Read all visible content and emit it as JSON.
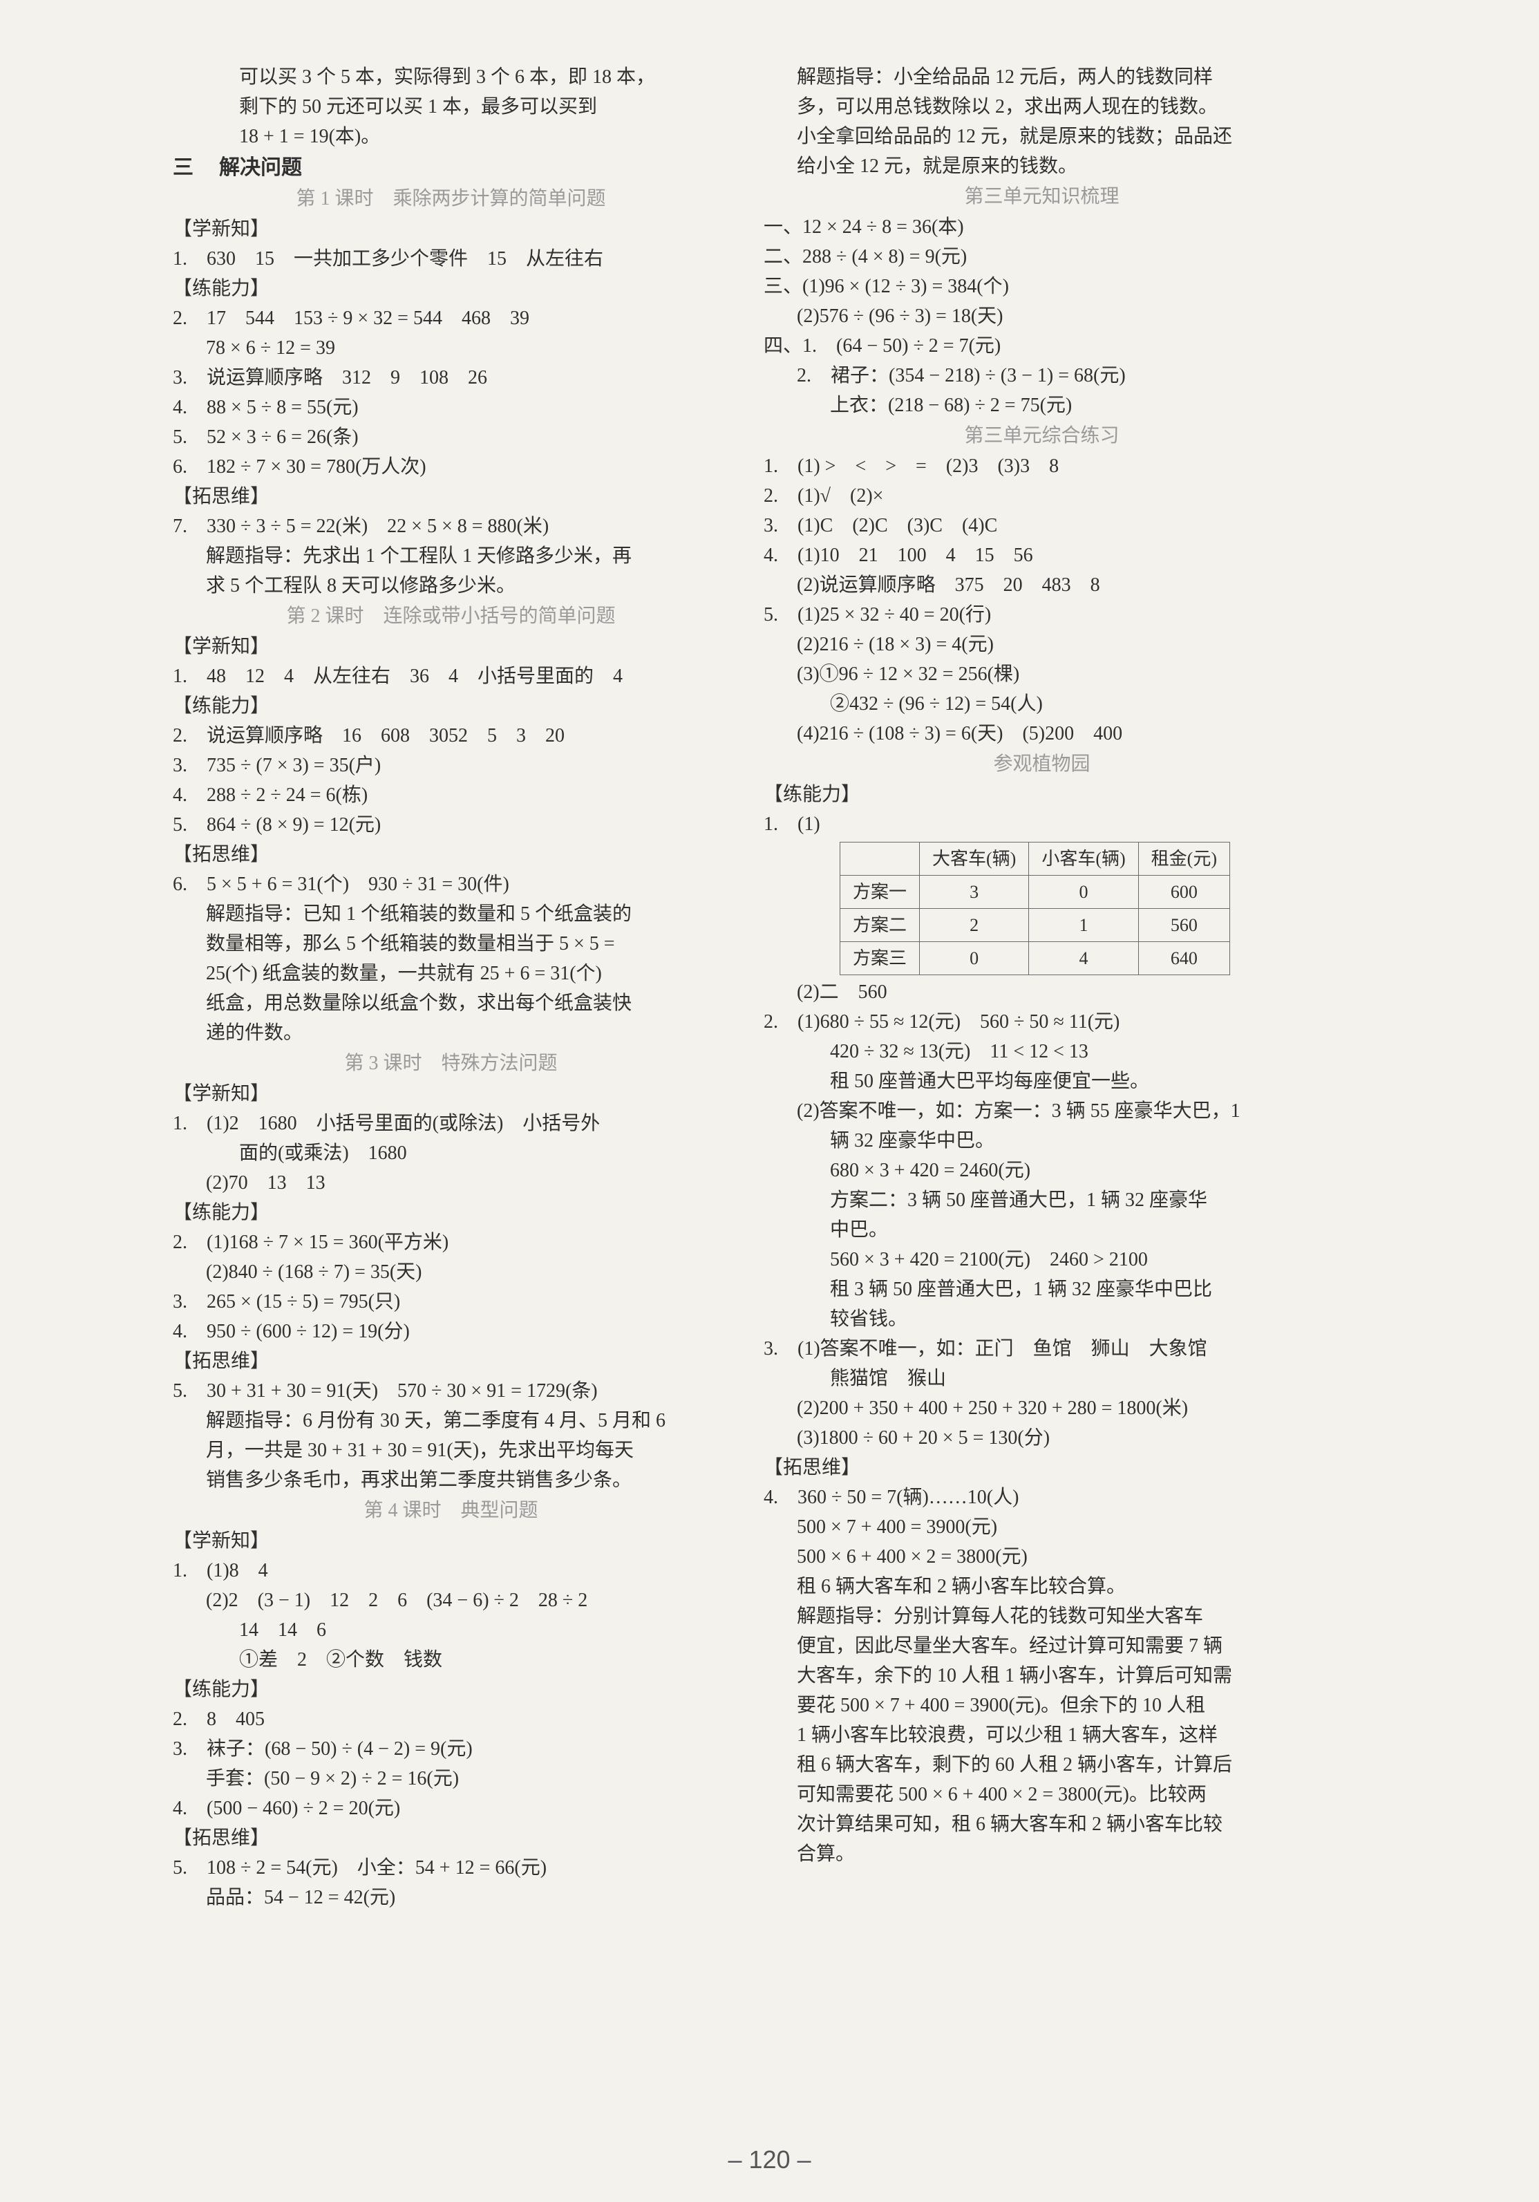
{
  "page_number": "– 120 –",
  "left": {
    "pre": [
      "可以买 3 个 5 本，实际得到 3 个 6 本，即 18 本，",
      "剩下的 50 元还可以买 1 本，最多可以买到",
      "18 + 1 = 19(本)。"
    ],
    "sec3": {
      "num": "三",
      "title": "解决问题"
    },
    "lesson1": "第 1 课时　乘除两步计算的简单问题",
    "h_learn": "【学新知】",
    "l1": "1.　630　15　一共加工多少个零件　15　从左往右",
    "h_practice": "【练能力】",
    "l2": "2.　17　544　153 ÷ 9 × 32 = 544　468　39",
    "l2b": "78 × 6 ÷ 12 = 39",
    "l3": "3.　说运算顺序略　312　9　108　26",
    "l4": "4.　88 × 5 ÷ 8 = 55(元)",
    "l5": "5.　52 × 3 ÷ 6 = 26(条)",
    "l6": "6.　182 ÷ 7 × 30 = 780(万人次)",
    "h_think": "【拓思维】",
    "l7": "7.　330 ÷ 3 ÷ 5 = 22(米)　22 × 5 × 8 = 880(米)",
    "l7a": "解题指导：先求出 1 个工程队 1 天修路多少米，再",
    "l7b": "求 5 个工程队 8 天可以修路多少米。",
    "lesson2": "第 2 课时　连除或带小括号的简单问题",
    "b1": "1.　48　12　4　从左往右　36　4　小括号里面的　4",
    "b2": "2.　说运算顺序略　16　608　3052　5　3　20",
    "b3": "3.　735 ÷ (7 × 3) = 35(户)",
    "b4": "4.　288 ÷ 2 ÷ 24 = 6(栋)",
    "b5": "5.　864 ÷ (8 × 9) = 12(元)",
    "b6": "6.　5 × 5 + 6 = 31(个)　930 ÷ 31 = 30(件)",
    "b6a": "解题指导：已知 1 个纸箱装的数量和 5 个纸盒装的",
    "b6b": "数量相等，那么 5 个纸箱装的数量相当于 5 × 5 =",
    "b6c": "25(个) 纸盒装的数量，一共就有 25 + 6 = 31(个)",
    "b6d": "纸盒，用总数量除以纸盒个数，求出每个纸盒装快",
    "b6e": "递的件数。",
    "lesson3": "第 3 课时　特殊方法问题",
    "c1a": "1.　(1)2　1680　小括号里面的(或除法)　小括号外",
    "c1b": "面的(或乘法)　1680",
    "c1c": "(2)70　13　13",
    "c2": "2.　(1)168 ÷ 7 × 15 = 360(平方米)",
    "c2b": "(2)840 ÷ (168 ÷ 7) = 35(天)",
    "c3": "3.　265 × (15 ÷ 5) = 795(只)",
    "c4": "4.　950 ÷ (600 ÷ 12) = 19(分)",
    "c5": "5.　30 + 31 + 30 = 91(天)　570 ÷ 30 × 91 = 1729(条)",
    "c5a": "解题指导：6 月份有 30 天，第二季度有 4 月、5 月和 6",
    "c5b": "月，一共是 30 + 31 + 30 = 91(天)，先求出平均每天",
    "c5c": "销售多少条毛巾，再求出第二季度共销售多少条。",
    "lesson4": "第 4 课时　典型问题",
    "d1a": "1.　(1)8　4",
    "d1b": "(2)2　(3 − 1)　12　2　6　(34 − 6) ÷ 2　28 ÷ 2",
    "d1c": "14　14　6",
    "d1d": "①差　2　②个数　钱数",
    "d2": "2.　8　405",
    "d3a": "3.　袜子：(68 − 50) ÷ (4 − 2) = 9(元)",
    "d3b": "手套：(50 − 9 × 2) ÷ 2 = 16(元)",
    "d4": "4.　(500 − 460) ÷ 2 = 20(元)",
    "d5a": "5.　108 ÷ 2 = 54(元)　小全：54 + 12 = 66(元)",
    "d5b": "品品：54 − 12 = 42(元)"
  },
  "right": {
    "e1": "解题指导：小全给品品 12 元后，两人的钱数同样",
    "e2": "多，可以用总钱数除以 2，求出两人现在的钱数。",
    "e3": "小全拿回给品品的 12 元，就是原来的钱数；品品还",
    "e4": "给小全 12 元，就是原来的钱数。",
    "lessonA": "第三单元知识梳理",
    "f1": "一、12 × 24 ÷ 8 = 36(本)",
    "f2": "二、288 ÷ (4 × 8) = 9(元)",
    "f3a": "三、(1)96 × (12 ÷ 3) = 384(个)",
    "f3b": "(2)576 ÷ (96 ÷ 3) = 18(天)",
    "f4a": "四、1.　(64 − 50) ÷ 2 = 7(元)",
    "f4b": "2.　裙子：(354 − 218) ÷ (3 − 1) = 68(元)",
    "f4c": "上衣：(218 − 68) ÷ 2 = 75(元)",
    "lessonB": "第三单元综合练习",
    "g1": "1.　(1) >　<　>　=　(2)3　(3)3　8",
    "g2": "2.　(1)√　(2)×",
    "g3": "3.　(1)C　(2)C　(3)C　(4)C",
    "g4a": "4.　(1)10　21　100　4　15　56",
    "g4b": "(2)说运算顺序略　375　20　483　8",
    "g5a": "5.　(1)25 × 32 ÷ 40 = 20(行)",
    "g5b": "(2)216 ÷ (18 × 3) = 4(元)",
    "g5c": "(3)①96 ÷ 12 × 32 = 256(棵)",
    "g5d": "②432 ÷ (96 ÷ 12) = 54(人)",
    "g5e": "(4)216 ÷ (108 ÷ 3) = 6(天)　(5)200　400",
    "lessonC": "参观植物园",
    "h_practice": "【练能力】",
    "h1pre": "1.　(1)",
    "table": {
      "header": [
        "",
        "大客车(辆)",
        "小客车(辆)",
        "租金(元)"
      ],
      "rows": [
        [
          "方案一",
          "3",
          "0",
          "600"
        ],
        [
          "方案二",
          "2",
          "1",
          "560"
        ],
        [
          "方案三",
          "0",
          "4",
          "640"
        ]
      ]
    },
    "h1post": "(2)二　560",
    "i1": "2.　(1)680 ÷ 55 ≈ 12(元)　560 ÷ 50 ≈ 11(元)",
    "i2": "420 ÷ 32 ≈ 13(元)　11 < 12 < 13",
    "i3": "租 50 座普通大巴平均每座便宜一些。",
    "i4": "(2)答案不唯一，如：方案一：3 辆 55 座豪华大巴，1",
    "i5": "辆 32 座豪华中巴。",
    "i6": "680 × 3 + 420 = 2460(元)",
    "i7": "方案二：3 辆 50 座普通大巴，1 辆 32 座豪华",
    "i8": "中巴。",
    "i9": "560 × 3 + 420 = 2100(元)　2460 > 2100",
    "i10": "租 3 辆 50 座普通大巴，1 辆 32 座豪华中巴比",
    "i11": "较省钱。",
    "j1": "3.　(1)答案不唯一，如：正门　鱼馆　狮山　大象馆",
    "j2": "熊猫馆　猴山",
    "j3": "(2)200 + 350 + 400 + 250 + 320 + 280 = 1800(米)",
    "j4": "(3)1800 ÷ 60 + 20 × 5 = 130(分)",
    "h_think": "【拓思维】",
    "k1": "4.　360 ÷ 50 = 7(辆)……10(人)",
    "k2": "500 × 7 + 400 = 3900(元)",
    "k3": "500 × 6 + 400 × 2 = 3800(元)",
    "k4": "租 6 辆大客车和 2 辆小客车比较合算。",
    "k5": "解题指导：分别计算每人花的钱数可知坐大客车",
    "k6": "便宜，因此尽量坐大客车。经过计算可知需要 7 辆",
    "k7": "大客车，余下的 10 人租 1 辆小客车，计算后可知需",
    "k8": "要花 500 × 7 + 400 = 3900(元)。但余下的 10 人租",
    "k9": "1 辆小客车比较浪费，可以少租 1 辆大客车，这样",
    "k10": "租 6 辆大客车，剩下的 60 人租 2 辆小客车，计算后",
    "k11": "可知需要花 500 × 6 + 400 × 2 = 3800(元)。比较两",
    "k12": "次计算结果可知，租 6 辆大客车和 2 辆小客车比较",
    "k13": "合算。"
  }
}
